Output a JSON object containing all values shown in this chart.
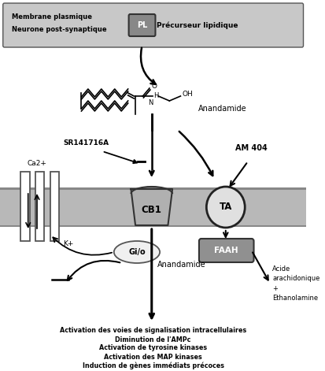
{
  "bg_color": "#ffffff",
  "top_mem_fill": "#c8c8c8",
  "top_mem_edge": "#555555",
  "pl_fill": "#888888",
  "pl_edge": "#333333",
  "pre_mem_fill": "#b8b8b8",
  "pre_mem_edge": "#888888",
  "cb1_fill": "#b0b0b0",
  "cb1_edge": "#333333",
  "ta_fill": "#e0e0e0",
  "ta_edge": "#222222",
  "faah_fill": "#909090",
  "faah_edge": "#333333",
  "gio_fill": "#f0f0f0",
  "gio_edge": "#555555",
  "chan_fill": "#ffffff",
  "chan_edge": "#555555",
  "top_membrane_label1": "Membrane plasmique",
  "top_membrane_label2": "Neurone post-synaptique",
  "pl_label": "PL",
  "precurseur_label": "Précurseur lipidique",
  "anandamide_label": "Anandamide",
  "sr_label": "SR141716A",
  "am404_label": "AM 404",
  "cb1_label": "CB1",
  "ta_label": "TA",
  "faah_label": "FAAH",
  "gio_label": "Gi/o",
  "ca_label": "Ca2+",
  "k_label": "K+",
  "anandamide2_label": "Anandamide",
  "acide_label": "Acide\narachidonique\n+\nEthanolamine",
  "bottom_line1": "Activation des voies de signalisation intracellulaires",
  "bottom_line2": "Diminution de l'AMPc",
  "bottom_line3": "Activation de tyrosine kinases",
  "bottom_line4": "Activation des MAP kinases",
  "bottom_line5": "Induction de gènes immédiats précoces",
  "fig_width": 4.14,
  "fig_height": 4.71,
  "dpi": 100
}
